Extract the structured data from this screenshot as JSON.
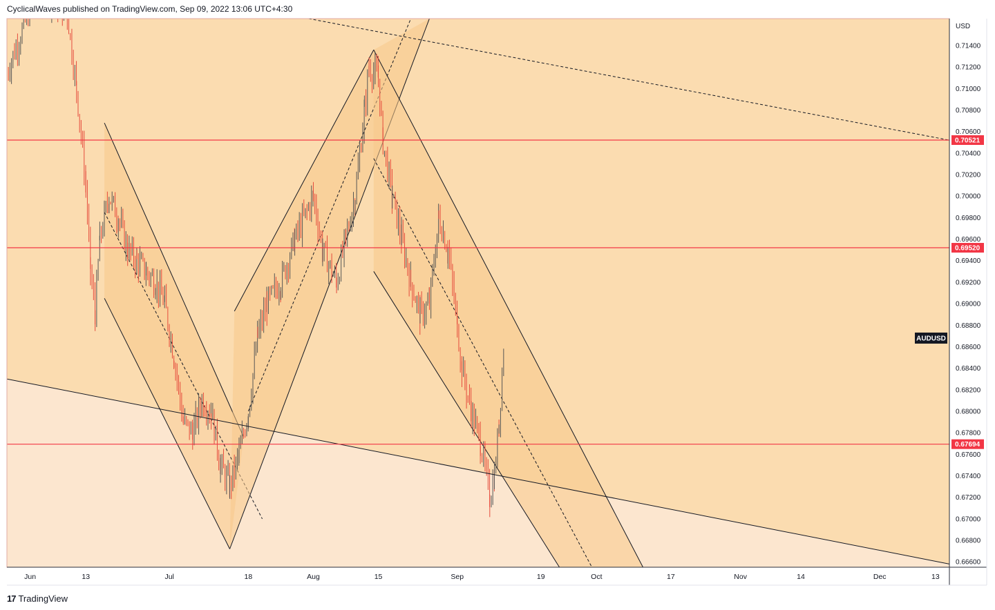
{
  "header": {
    "publisher": "CyclicalWaves published on TradingView.com, Sep 09, 2022 13:06 UTC+4:30"
  },
  "footer": {
    "logo_mark": "17",
    "brand": "TradingView"
  },
  "colors": {
    "background": "#ffffff",
    "plot_bg_upper": "#fbdcb0",
    "plot_bg_lower": "#fce6cf",
    "channel_fill": "#f8c98a",
    "candle_up": "#555555",
    "candle_down": "#e54a3c",
    "hline": "#f23645",
    "trendline": "#131722",
    "axis_text": "#131722"
  },
  "chart_data": {
    "type": "candlestick",
    "symbol": "AUDUSD",
    "currency": "USD",
    "xlim": [
      "2022-05-27",
      "2022-12-16"
    ],
    "ylim": [
      0.6655,
      0.7165
    ],
    "y_ticks": [
      "0.71400",
      "0.71200",
      "0.71000",
      "0.70800",
      "0.70600",
      "0.70400",
      "0.70200",
      "0.70000",
      "0.69800",
      "0.69600",
      "0.69400",
      "0.69200",
      "0.69000",
      "0.68800",
      "0.68600",
      "0.68400",
      "0.68200",
      "0.68000",
      "0.67800",
      "0.67600",
      "0.67400",
      "0.67200",
      "0.67000",
      "0.66800",
      "0.66600"
    ],
    "y_tick_values": [
      0.714,
      0.712,
      0.71,
      0.708,
      0.706,
      0.704,
      0.702,
      0.7,
      0.698,
      0.696,
      0.694,
      0.692,
      0.69,
      0.688,
      0.686,
      0.684,
      0.682,
      0.68,
      0.678,
      0.676,
      0.674,
      0.672,
      0.67,
      0.668,
      0.666
    ],
    "x_ticks": [
      {
        "label": "Jun",
        "date": "2022-06-01"
      },
      {
        "label": "13",
        "date": "2022-06-13"
      },
      {
        "label": "Jul",
        "date": "2022-07-01"
      },
      {
        "label": "18",
        "date": "2022-07-18"
      },
      {
        "label": "Aug",
        "date": "2022-08-01"
      },
      {
        "label": "15",
        "date": "2022-08-15"
      },
      {
        "label": "Sep",
        "date": "2022-09-01"
      },
      {
        "label": "19",
        "date": "2022-09-19"
      },
      {
        "label": "Oct",
        "date": "2022-10-01"
      },
      {
        "label": "17",
        "date": "2022-10-17"
      },
      {
        "label": "Nov",
        "date": "2022-11-01"
      },
      {
        "label": "14",
        "date": "2022-11-14"
      },
      {
        "label": "Dec",
        "date": "2022-12-01"
      },
      {
        "label": "13",
        "date": "2022-12-13"
      }
    ],
    "horizontal_levels": [
      {
        "label": "0.70521",
        "value": 0.70521
      },
      {
        "label": "0.69520",
        "value": 0.6952
      },
      {
        "label": "0.67694",
        "value": 0.67694
      }
    ],
    "price_label": {
      "text": "AUDUSD",
      "value": 0.6868
    },
    "close_series": [
      {
        "date": "2022-05-27",
        "close": 0.7115
      },
      {
        "date": "2022-06-01",
        "close": 0.7175
      },
      {
        "date": "2022-06-05",
        "close": 0.7185
      },
      {
        "date": "2022-06-09",
        "close": 0.717
      },
      {
        "date": "2022-06-11",
        "close": 0.71
      },
      {
        "date": "2022-06-13",
        "close": 0.701
      },
      {
        "date": "2022-06-14",
        "close": 0.693
      },
      {
        "date": "2022-06-15",
        "close": 0.689
      },
      {
        "date": "2022-06-16",
        "close": 0.696
      },
      {
        "date": "2022-06-18",
        "close": 0.7
      },
      {
        "date": "2022-06-20",
        "close": 0.698
      },
      {
        "date": "2022-06-22",
        "close": 0.695
      },
      {
        "date": "2022-06-24",
        "close": 0.694
      },
      {
        "date": "2022-06-26",
        "close": 0.693
      },
      {
        "date": "2022-06-28",
        "close": 0.692
      },
      {
        "date": "2022-06-30",
        "close": 0.69
      },
      {
        "date": "2022-07-02",
        "close": 0.685
      },
      {
        "date": "2022-07-04",
        "close": 0.679
      },
      {
        "date": "2022-07-06",
        "close": 0.678
      },
      {
        "date": "2022-07-08",
        "close": 0.681
      },
      {
        "date": "2022-07-10",
        "close": 0.68
      },
      {
        "date": "2022-07-12",
        "close": 0.675
      },
      {
        "date": "2022-07-14",
        "close": 0.673
      },
      {
        "date": "2022-07-16",
        "close": 0.676
      },
      {
        "date": "2022-07-18",
        "close": 0.68
      },
      {
        "date": "2022-07-20",
        "close": 0.687
      },
      {
        "date": "2022-07-22",
        "close": 0.69
      },
      {
        "date": "2022-07-25",
        "close": 0.692
      },
      {
        "date": "2022-07-28",
        "close": 0.696
      },
      {
        "date": "2022-08-01",
        "close": 0.7
      },
      {
        "date": "2022-08-03",
        "close": 0.695
      },
      {
        "date": "2022-08-06",
        "close": 0.692
      },
      {
        "date": "2022-08-08",
        "close": 0.696
      },
      {
        "date": "2022-08-10",
        "close": 0.7
      },
      {
        "date": "2022-08-12",
        "close": 0.708
      },
      {
        "date": "2022-08-13",
        "close": 0.712
      },
      {
        "date": "2022-08-15",
        "close": 0.711
      },
      {
        "date": "2022-08-16",
        "close": 0.705
      },
      {
        "date": "2022-08-18",
        "close": 0.7
      },
      {
        "date": "2022-08-20",
        "close": 0.696
      },
      {
        "date": "2022-08-22",
        "close": 0.692
      },
      {
        "date": "2022-08-24",
        "close": 0.689
      },
      {
        "date": "2022-08-26",
        "close": 0.69
      },
      {
        "date": "2022-08-28",
        "close": 0.698
      },
      {
        "date": "2022-08-30",
        "close": 0.695
      },
      {
        "date": "2022-09-01",
        "close": 0.688
      },
      {
        "date": "2022-09-02",
        "close": 0.684
      },
      {
        "date": "2022-09-04",
        "close": 0.68
      },
      {
        "date": "2022-09-06",
        "close": 0.677
      },
      {
        "date": "2022-09-08",
        "close": 0.672
      },
      {
        "date": "2022-09-09",
        "close": 0.674
      },
      {
        "date": "2022-09-10",
        "close": 0.679
      },
      {
        "date": "2022-09-11",
        "close": 0.686
      }
    ],
    "channels": [
      {
        "name": "june-descending",
        "base": [
          [
            "2022-06-17",
            0.7068
          ],
          [
            "2022-07-17",
            0.6776
          ]
        ],
        "parallel": [
          [
            "2022-06-17",
            0.6905
          ],
          [
            "2022-07-14",
            0.6672
          ]
        ],
        "mid": [
          [
            "2022-06-17",
            0.6985
          ],
          [
            "2022-07-21",
            0.67
          ]
        ]
      },
      {
        "name": "july-ascending",
        "base": [
          [
            "2022-07-14",
            0.6672
          ],
          [
            "2022-08-26",
            0.7165
          ]
        ],
        "parallel": [
          [
            "2022-07-15",
            0.6893
          ],
          [
            "2022-08-14",
            0.7136
          ]
        ],
        "mid": [
          [
            "2022-07-18",
            0.68
          ],
          [
            "2022-08-22",
            0.7165
          ]
        ]
      },
      {
        "name": "august-descending",
        "base": [
          [
            "2022-08-14",
            0.7136
          ],
          [
            "2022-10-11",
            0.6655
          ]
        ],
        "parallel": [
          [
            "2022-08-14",
            0.693
          ],
          [
            "2022-09-23",
            0.6655
          ]
        ],
        "mid": [
          [
            "2022-08-14",
            0.7035
          ],
          [
            "2022-09-30",
            0.6655
          ]
        ]
      }
    ],
    "trendlines": [
      {
        "name": "lower-support",
        "style": "solid",
        "points": [
          [
            "2022-05-27",
            0.683
          ],
          [
            "2022-12-16",
            0.6658
          ]
        ]
      },
      {
        "name": "upper-resistance",
        "style": "dashed",
        "points": [
          [
            "2022-07-31",
            0.7165
          ],
          [
            "2022-12-16",
            0.7052
          ]
        ]
      }
    ]
  }
}
